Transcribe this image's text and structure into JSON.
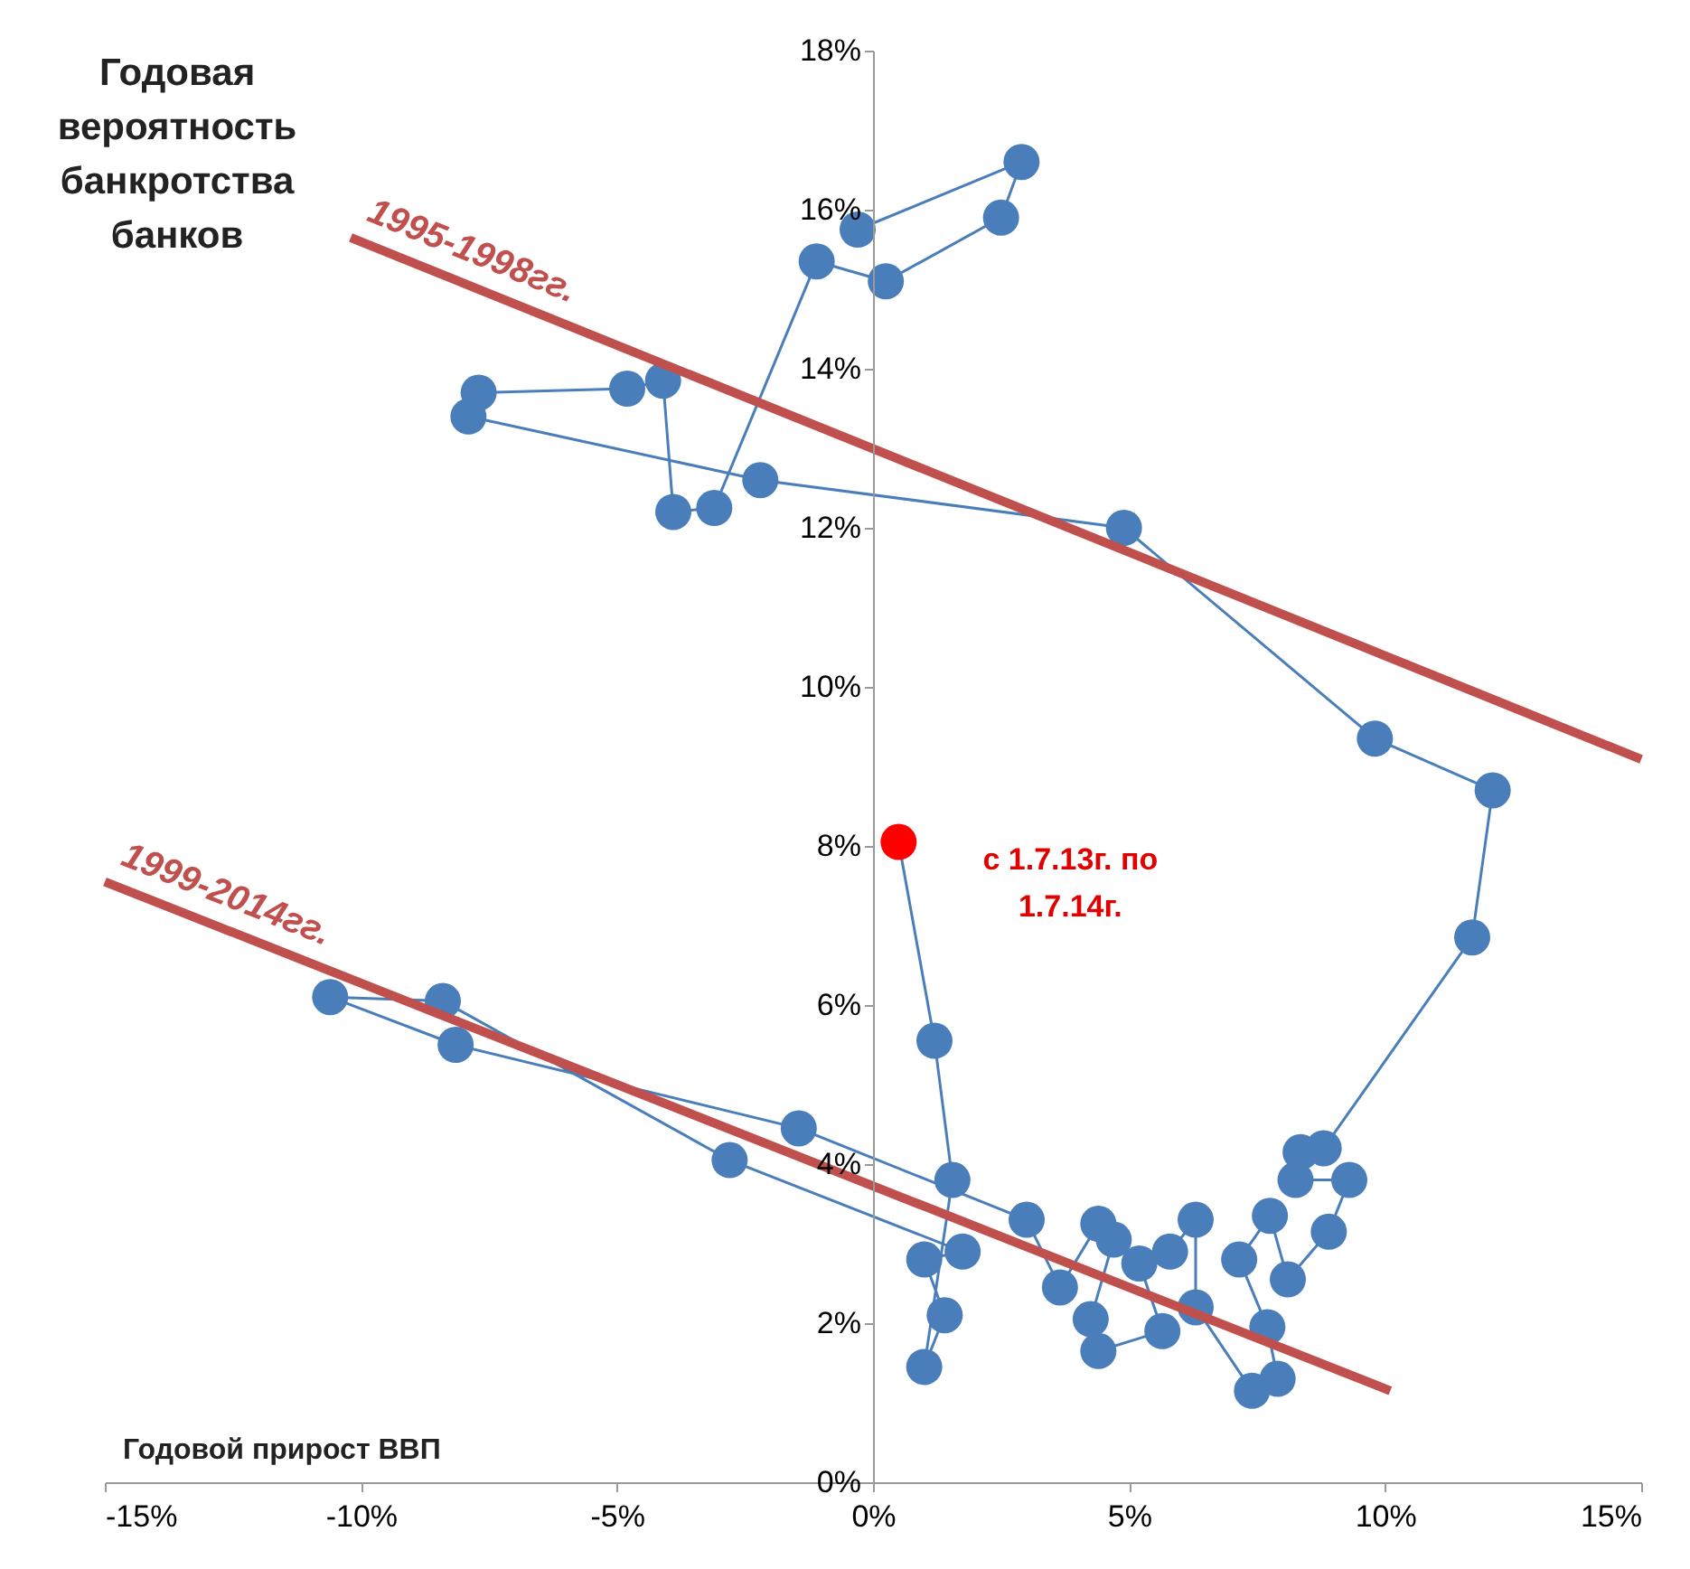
{
  "chart_data": {
    "type": "line",
    "xlabel": "Годовой прирост ВВП",
    "ylabel": "Годовая вероятность банкротства банков",
    "xlim": [
      -15,
      15
    ],
    "ylim": [
      0,
      18
    ],
    "xticks": [
      {
        "value": -15,
        "label": "-15%"
      },
      {
        "value": -10,
        "label": "-10%"
      },
      {
        "value": -5,
        "label": "-5%"
      },
      {
        "value": 0,
        "label": "0%"
      },
      {
        "value": 5,
        "label": "5%"
      },
      {
        "value": 10,
        "label": "10%"
      },
      {
        "value": 15,
        "label": "15%"
      }
    ],
    "yticks": [
      {
        "value": 0,
        "label": "0%"
      },
      {
        "value": 2,
        "label": "2%"
      },
      {
        "value": 4,
        "label": "4%"
      },
      {
        "value": 6,
        "label": "6%"
      },
      {
        "value": 8,
        "label": "8%"
      },
      {
        "value": 10,
        "label": "10%"
      },
      {
        "value": 12,
        "label": "12%"
      },
      {
        "value": 14,
        "label": "14%"
      },
      {
        "value": 16,
        "label": "16%"
      },
      {
        "value": 18,
        "label": "18%"
      }
    ],
    "series": [
      {
        "type": "line",
        "marker": "circle",
        "color": "#4a7ebb",
        "x": [
          -0.3,
          2.9,
          2.5,
          0.25,
          -1.1,
          -3.1,
          -3.9,
          -4.1,
          -4.8,
          -7.7,
          -7.9,
          -2.2,
          4.9,
          9.8,
          12.1,
          11.7,
          8.8,
          8.35,
          8.25,
          9.3,
          8.9,
          8.1,
          7.75,
          7.15,
          7.7,
          7.9,
          7.4,
          6.3,
          6.3,
          5.8,
          5.2,
          5.65,
          4.4,
          4.25,
          4.7,
          4.4,
          3.65,
          3.0,
          -1.45,
          -8.15,
          -10.6,
          -8.4,
          -2.8,
          1.75,
          1.0,
          1.4,
          1.0,
          1.55,
          1.2,
          0.5
        ],
        "values": [
          15.75,
          16.6,
          15.9,
          15.1,
          15.35,
          12.25,
          12.2,
          13.85,
          13.75,
          13.7,
          13.4,
          12.6,
          12.0,
          9.35,
          8.7,
          6.85,
          4.2,
          4.15,
          3.8,
          3.8,
          3.15,
          2.55,
          3.35,
          2.8,
          1.95,
          1.3,
          1.15,
          2.2,
          3.3,
          2.9,
          2.75,
          1.9,
          1.65,
          2.05,
          3.05,
          3.25,
          2.45,
          3.3,
          4.45,
          5.5,
          6.1,
          6.05,
          4.05,
          2.9,
          2.8,
          2.1,
          1.45,
          3.8,
          5.55,
          8.05
        ],
        "colors": [
          "#4a7ebb",
          "#4a7ebb",
          "#4a7ebb",
          "#4a7ebb",
          "#4a7ebb",
          "#4a7ebb",
          "#4a7ebb",
          "#4a7ebb",
          "#4a7ebb",
          "#4a7ebb",
          "#4a7ebb",
          "#4a7ebb",
          "#4a7ebb",
          "#4a7ebb",
          "#4a7ebb",
          "#4a7ebb",
          "#4a7ebb",
          "#4a7ebb",
          "#4a7ebb",
          "#4a7ebb",
          "#4a7ebb",
          "#4a7ebb",
          "#4a7ebb",
          "#4a7ebb",
          "#4a7ebb",
          "#4a7ebb",
          "#4a7ebb",
          "#4a7ebb",
          "#4a7ebb",
          "#4a7ebb",
          "#4a7ebb",
          "#4a7ebb",
          "#4a7ebb",
          "#4a7ebb",
          "#4a7ebb",
          "#4a7ebb",
          "#4a7ebb",
          "#4a7ebb",
          "#4a7ebb",
          "#4a7ebb",
          "#4a7ebb",
          "#4a7ebb",
          "#4a7ebb",
          "#4a7ebb",
          "#4a7ebb",
          "#4a7ebb",
          "#4a7ebb",
          "#4a7ebb",
          "#4a7ebb",
          "#ff0000"
        ]
      },
      {
        "type": "line",
        "name": "1995-1998гг.",
        "color": "#c0504d",
        "marker": "none",
        "x": [
          -10.2,
          15
        ],
        "values": [
          15.65,
          9.09
        ]
      },
      {
        "type": "line",
        "name": "1999-2014гг.",
        "color": "#c0504d",
        "marker": "none",
        "x": [
          -15,
          10.1
        ],
        "values": [
          7.55,
          1.15
        ]
      }
    ],
    "annotations": [
      {
        "text": "с 1.7.13г. по 1.7.14г.",
        "x": 0.5,
        "y": 8.05
      }
    ]
  }
}
